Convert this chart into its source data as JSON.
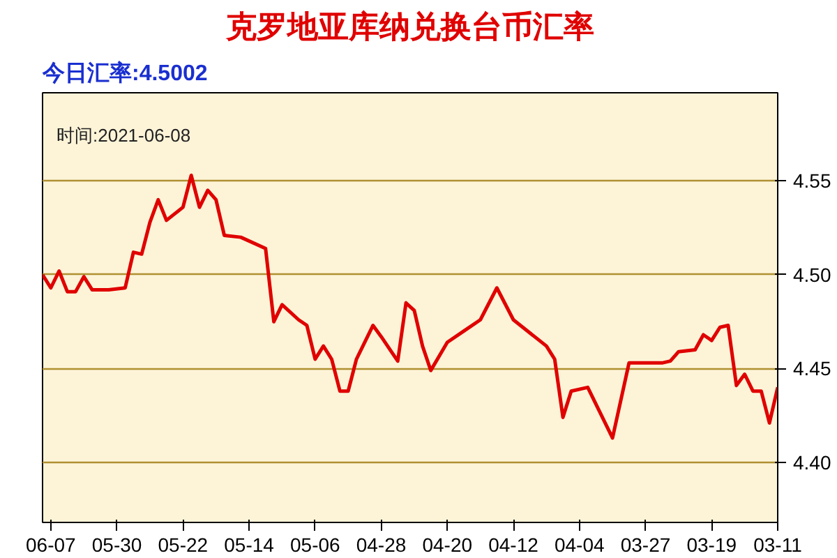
{
  "chart_data": {
    "type": "line",
    "title": "克罗地亚库纳兑换台币汇率",
    "annotations": [
      "今日汇率:4.5002",
      "时间:2021-06-08"
    ],
    "x": [
      "2021-03-11",
      "2021-03-12",
      "2021-03-13",
      "2021-03-14",
      "2021-03-15",
      "2021-03-16",
      "2021-03-17",
      "2021-03-18",
      "2021-03-19",
      "2021-03-20",
      "2021-03-21",
      "2021-03-23",
      "2021-03-24",
      "2021-03-25",
      "2021-03-29",
      "2021-03-31",
      "2021-04-03",
      "2021-04-05",
      "2021-04-06",
      "2021-04-07",
      "2021-04-08",
      "2021-04-12",
      "2021-04-14",
      "2021-04-16",
      "2021-04-18",
      "2021-04-20",
      "2021-04-22",
      "2021-04-23",
      "2021-04-24",
      "2021-04-25",
      "2021-04-26",
      "2021-04-28",
      "2021-04-29",
      "2021-05-01",
      "2021-05-02",
      "2021-05-03",
      "2021-05-04",
      "2021-05-05",
      "2021-05-06",
      "2021-05-07",
      "2021-05-08",
      "2021-05-10",
      "2021-05-11",
      "2021-05-12",
      "2021-05-15",
      "2021-05-17",
      "2021-05-18",
      "2021-05-19",
      "2021-05-20",
      "2021-05-21",
      "2021-05-22",
      "2021-05-24",
      "2021-05-25",
      "2021-05-26",
      "2021-05-27",
      "2021-05-28",
      "2021-05-29",
      "2021-05-31",
      "2021-06-02",
      "2021-06-03",
      "2021-06-04",
      "2021-06-05",
      "2021-06-06",
      "2021-06-07",
      "2021-06-08"
    ],
    "series": [
      {
        "color": "#e00000",
        "values": [
          4.44,
          4.421,
          4.438,
          4.438,
          4.447,
          4.441,
          4.473,
          4.472,
          4.465,
          4.468,
          4.46,
          4.459,
          4.454,
          4.453,
          4.453,
          4.413,
          4.44,
          4.438,
          4.424,
          4.455,
          4.462,
          4.476,
          4.493,
          4.476,
          4.47,
          4.464,
          4.449,
          4.462,
          4.481,
          4.485,
          4.454,
          4.467,
          4.473,
          4.455,
          4.438,
          4.438,
          4.455,
          4.462,
          4.455,
          4.473,
          4.476,
          4.484,
          4.475,
          4.514,
          4.52,
          4.521,
          4.54,
          4.545,
          4.536,
          4.553,
          4.536,
          4.529,
          4.54,
          4.528,
          4.511,
          4.512,
          4.493,
          4.492,
          4.492,
          4.499,
          4.491,
          4.491,
          4.502,
          4.493,
          4.5
        ]
      }
    ],
    "xlim": [
      "2021-06-08",
      "2021-03-11"
    ],
    "xticks": [
      {
        "value": "2021-03-11",
        "label": "03-11"
      },
      {
        "value": "2021-03-19",
        "label": "03-19"
      },
      {
        "value": "2021-03-27",
        "label": "03-27"
      },
      {
        "value": "2021-04-04",
        "label": "04-04"
      },
      {
        "value": "2021-04-12",
        "label": "04-12"
      },
      {
        "value": "2021-04-20",
        "label": "04-20"
      },
      {
        "value": "2021-04-28",
        "label": "04-28"
      },
      {
        "value": "2021-05-06",
        "label": "05-06"
      },
      {
        "value": "2021-05-14",
        "label": "05-14"
      },
      {
        "value": "2021-05-22",
        "label": "05-22"
      },
      {
        "value": "2021-05-30",
        "label": "05-30"
      },
      {
        "value": "2021-06-07",
        "label": "06-07"
      }
    ],
    "ylim": [
      4.368,
      4.597
    ],
    "yticks": [
      {
        "value": 4.4,
        "label": "4.40"
      },
      {
        "value": 4.45,
        "label": "4.45"
      },
      {
        "value": 4.5,
        "label": "4.50"
      },
      {
        "value": 4.55,
        "label": "4.55"
      }
    ],
    "grid": "y",
    "marker": "none",
    "line_style": "solid"
  }
}
